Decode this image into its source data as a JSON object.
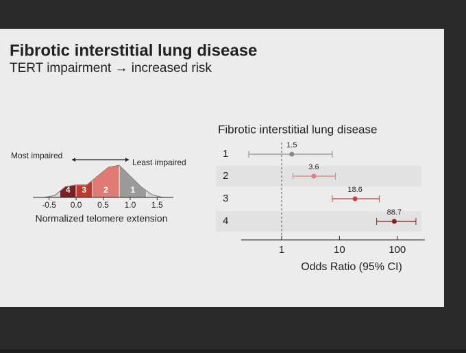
{
  "slide": {
    "title": "Fibrotic interstitial lung disease",
    "subtitle": "TERT impairment → increased risk"
  },
  "chart_data": [
    {
      "type": "density",
      "xlabel": "Normalized telomere extension",
      "annotations": [
        "Most impaired",
        "Least impaired"
      ],
      "x": [
        -0.6,
        -0.4,
        -0.2,
        0,
        0.2,
        0.4,
        0.6,
        0.8,
        1.0,
        1.2,
        1.4,
        1.6
      ],
      "y": [
        0,
        0.05,
        0.3,
        0.35,
        0.35,
        0.6,
        0.85,
        0.9,
        0.6,
        0.3,
        0.08,
        0
      ],
      "categories": [
        "4",
        "3",
        "2",
        "1"
      ],
      "bins": [
        -0.3,
        0,
        0.3,
        0.8,
        1.3
      ],
      "colors": [
        "#7a1f22",
        "#c0392b",
        "#e07a74",
        "#9a9a9a"
      ],
      "xlim": [
        -0.8,
        1.8
      ],
      "ylim": [
        0,
        1
      ],
      "xticks": [
        -0.5,
        {
          "value": 0,
          "label": "0.0"
        },
        0.5,
        {
          "value": 1,
          "label": "1.0"
        },
        1.5
      ]
    },
    {
      "type": "forest",
      "title": "Fibrotic interstitial lung disease",
      "xlabel": "Odds Ratio (95% CI)",
      "categories": [
        "1",
        "2",
        "3",
        "4"
      ],
      "values": [
        1.5,
        3.6,
        18.6,
        88.7
      ],
      "ci_low": [
        0.27,
        1.56,
        7.5,
        44
      ],
      "ci_high": [
        7.5,
        8.5,
        49,
        210
      ],
      "colors": [
        "#888888",
        "#d98080",
        "#c8423a",
        "#8b1a1a"
      ],
      "log_scale": true,
      "reference_line": 1,
      "xlim": [
        0.2,
        300
      ],
      "xticks": [
        1,
        10,
        100
      ]
    }
  ]
}
